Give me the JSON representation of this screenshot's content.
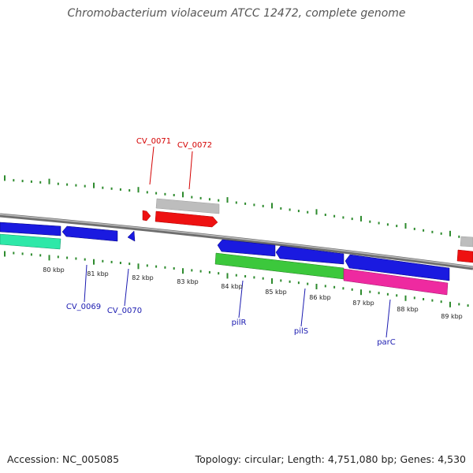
{
  "title": "Chromobacterium violaceum ATCC 12472, complete genome",
  "footer": {
    "accession": "Accession: NC_005085",
    "summary": "Topology: circular; Length: 4,751,080 bp; Genes: 4,530"
  },
  "colors": {
    "backbone": "#8a8a8a",
    "ticks": "#2e8b2e",
    "forward_label": "#d40000",
    "reverse_label": "#1a1ab0",
    "gene_blue": "#1a1ae0",
    "gene_red": "#ee1111",
    "gene_gray": "#bdbdbd",
    "gene_green": "#3cc83c",
    "gene_teal": "#2ee8a8",
    "gene_magenta": "#ee2aa0"
  },
  "scale": {
    "labels": [
      "80 kbp",
      "81 kbp",
      "82 kbp",
      "83 kbp",
      "84 kbp",
      "85 kbp",
      "86 kbp",
      "87 kbp",
      "88 kbp",
      "89 kbp"
    ]
  },
  "genes": {
    "forward": [
      {
        "label": "CV_0071"
      },
      {
        "label": "CV_0072"
      }
    ],
    "reverse": [
      {
        "label": "CV_0069"
      },
      {
        "label": "CV_0070"
      },
      {
        "label": "pilR"
      },
      {
        "label": "pilS"
      },
      {
        "label": "parC"
      }
    ]
  }
}
